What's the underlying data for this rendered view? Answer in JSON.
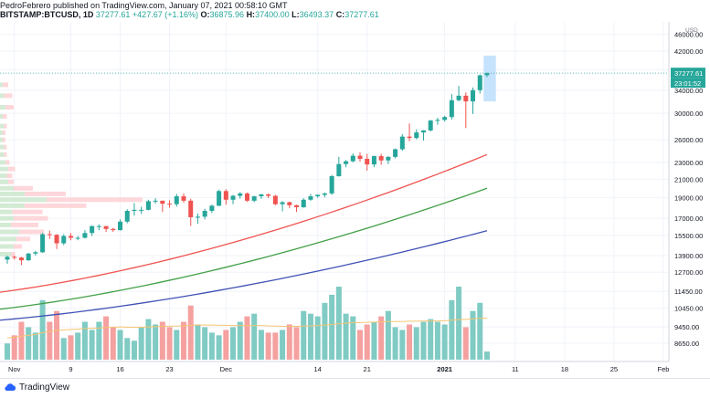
{
  "header": {
    "publish_line": "PedroFebrero published on TradingView.com, January 07, 2021 00:58:10 GMT",
    "symbol": "BITSTAMP:BTCUSD, 1D",
    "last": "37277.61",
    "change": "+427.67 (+1.16%)",
    "o_label": "O:",
    "o_value": "36875.96",
    "h_label": "H:",
    "h_value": "37400.00",
    "l_label": "L:",
    "l_value": "36493.37",
    "c_label": "C:",
    "c_value": "37277.61"
  },
  "footer": {
    "logo_text": "TradingView"
  },
  "colors": {
    "up": "#26a69a",
    "down": "#ef5350",
    "vol_up": "#80cbc4",
    "vol_down": "#f4a1a0",
    "ma_red": "#ef5350",
    "ma_green": "#43a047",
    "ma_blue": "#3f51b5",
    "vol_ma": "#f5c572",
    "projection": "#bbdefb"
  },
  "chart_data": {
    "type": "candlestick",
    "scale": "log",
    "currency": "USD",
    "price_axis_ticks": [
      8650,
      9450,
      10450,
      11450,
      12700,
      13900,
      15500,
      17000,
      19000,
      21000,
      23000,
      26000,
      30000,
      34000,
      38000,
      42000,
      46000
    ],
    "time_axis_labels": [
      {
        "label": "Nov",
        "date": "2020-11-01"
      },
      {
        "label": "9",
        "date": "2020-11-09"
      },
      {
        "label": "16",
        "date": "2020-11-16"
      },
      {
        "label": "23",
        "date": "2020-11-23"
      },
      {
        "label": "Dec",
        "date": "2020-12-01"
      },
      {
        "label": "14",
        "date": "2020-12-14"
      },
      {
        "label": "21",
        "date": "2020-12-21"
      },
      {
        "label": "2021",
        "date": "2021-01-01"
      },
      {
        "label": "11",
        "date": "2021-01-11"
      },
      {
        "label": "18",
        "date": "2021-01-18"
      },
      {
        "label": "25",
        "date": "2021-01-25"
      },
      {
        "label": "Feb",
        "date": "2021-02-01"
      }
    ],
    "last_price_label": "37277.61",
    "countdown_label": "23:01:52",
    "axis_currency_label": "USD",
    "candles": [
      {
        "date": "2020-10-31",
        "o": 13600,
        "h": 13900,
        "l": 13300,
        "c": 13800
      },
      {
        "date": "2020-11-01",
        "o": 13800,
        "h": 13900,
        "l": 13600,
        "c": 13750
      },
      {
        "date": "2020-11-02",
        "o": 13750,
        "h": 13800,
        "l": 13200,
        "c": 13550
      },
      {
        "date": "2020-11-03",
        "o": 13550,
        "h": 14100,
        "l": 13500,
        "c": 14050
      },
      {
        "date": "2020-11-04",
        "o": 14050,
        "h": 14250,
        "l": 13900,
        "c": 14150
      },
      {
        "date": "2020-11-05",
        "o": 14150,
        "h": 15700,
        "l": 14100,
        "c": 15600
      },
      {
        "date": "2020-11-06",
        "o": 15600,
        "h": 15900,
        "l": 15200,
        "c": 15550
      },
      {
        "date": "2020-11-07",
        "o": 15550,
        "h": 15600,
        "l": 14400,
        "c": 14850
      },
      {
        "date": "2020-11-08",
        "o": 14850,
        "h": 15600,
        "l": 14700,
        "c": 15450
      },
      {
        "date": "2020-11-09",
        "o": 15450,
        "h": 15700,
        "l": 15100,
        "c": 15300
      },
      {
        "date": "2020-11-10",
        "o": 15300,
        "h": 15450,
        "l": 15100,
        "c": 15300
      },
      {
        "date": "2020-11-11",
        "o": 15300,
        "h": 15950,
        "l": 15250,
        "c": 15700
      },
      {
        "date": "2020-11-12",
        "o": 15700,
        "h": 16350,
        "l": 15450,
        "c": 16300
      },
      {
        "date": "2020-11-13",
        "o": 16300,
        "h": 16450,
        "l": 15950,
        "c": 16300
      },
      {
        "date": "2020-11-14",
        "o": 16300,
        "h": 16300,
        "l": 15800,
        "c": 16050
      },
      {
        "date": "2020-11-15",
        "o": 16050,
        "h": 16150,
        "l": 15800,
        "c": 15950
      },
      {
        "date": "2020-11-16",
        "o": 15950,
        "h": 16900,
        "l": 15900,
        "c": 16700
      },
      {
        "date": "2020-11-17",
        "o": 16700,
        "h": 17850,
        "l": 16550,
        "c": 17700
      },
      {
        "date": "2020-11-18",
        "o": 17700,
        "h": 18450,
        "l": 17250,
        "c": 17800
      },
      {
        "date": "2020-11-19",
        "o": 17800,
        "h": 18100,
        "l": 17400,
        "c": 17800
      },
      {
        "date": "2020-11-20",
        "o": 17800,
        "h": 18800,
        "l": 17750,
        "c": 18650
      },
      {
        "date": "2020-11-21",
        "o": 18650,
        "h": 18950,
        "l": 18400,
        "c": 18700
      },
      {
        "date": "2020-11-22",
        "o": 18700,
        "h": 18700,
        "l": 17600,
        "c": 18400
      },
      {
        "date": "2020-11-23",
        "o": 18400,
        "h": 18750,
        "l": 18000,
        "c": 18350
      },
      {
        "date": "2020-11-24",
        "o": 18350,
        "h": 19400,
        "l": 18100,
        "c": 19150
      },
      {
        "date": "2020-11-25",
        "o": 19150,
        "h": 19450,
        "l": 18500,
        "c": 18700
      },
      {
        "date": "2020-11-26",
        "o": 18700,
        "h": 18900,
        "l": 16300,
        "c": 17100
      },
      {
        "date": "2020-11-27",
        "o": 17100,
        "h": 17450,
        "l": 16500,
        "c": 17150
      },
      {
        "date": "2020-11-28",
        "o": 17150,
        "h": 17900,
        "l": 16900,
        "c": 17700
      },
      {
        "date": "2020-11-29",
        "o": 17700,
        "h": 18300,
        "l": 17500,
        "c": 18200
      },
      {
        "date": "2020-11-30",
        "o": 18200,
        "h": 19850,
        "l": 18150,
        "c": 19700
      },
      {
        "date": "2020-12-01",
        "o": 19700,
        "h": 19900,
        "l": 18300,
        "c": 18800
      },
      {
        "date": "2020-12-02",
        "o": 18800,
        "h": 19300,
        "l": 18350,
        "c": 19200
      },
      {
        "date": "2020-12-03",
        "o": 19200,
        "h": 19600,
        "l": 18900,
        "c": 19450
      },
      {
        "date": "2020-12-04",
        "o": 19450,
        "h": 19550,
        "l": 18600,
        "c": 18700
      },
      {
        "date": "2020-12-05",
        "o": 18700,
        "h": 19200,
        "l": 18550,
        "c": 19150
      },
      {
        "date": "2020-12-06",
        "o": 19150,
        "h": 19400,
        "l": 18900,
        "c": 19350
      },
      {
        "date": "2020-12-07",
        "o": 19350,
        "h": 19450,
        "l": 18950,
        "c": 19200
      },
      {
        "date": "2020-12-08",
        "o": 19200,
        "h": 19300,
        "l": 18250,
        "c": 18350
      },
      {
        "date": "2020-12-09",
        "o": 18350,
        "h": 18650,
        "l": 17650,
        "c": 18550
      },
      {
        "date": "2020-12-10",
        "o": 18550,
        "h": 18600,
        "l": 17950,
        "c": 18250
      },
      {
        "date": "2020-12-11",
        "o": 18250,
        "h": 18300,
        "l": 17600,
        "c": 18050
      },
      {
        "date": "2020-12-12",
        "o": 18050,
        "h": 18950,
        "l": 18000,
        "c": 18800
      },
      {
        "date": "2020-12-13",
        "o": 18800,
        "h": 19400,
        "l": 18700,
        "c": 19150
      },
      {
        "date": "2020-12-14",
        "o": 19150,
        "h": 19350,
        "l": 19000,
        "c": 19300
      },
      {
        "date": "2020-12-15",
        "o": 19300,
        "h": 19550,
        "l": 19050,
        "c": 19450
      },
      {
        "date": "2020-12-16",
        "o": 19450,
        "h": 21500,
        "l": 19300,
        "c": 21350
      },
      {
        "date": "2020-12-17",
        "o": 21350,
        "h": 23700,
        "l": 21300,
        "c": 22800
      },
      {
        "date": "2020-12-18",
        "o": 22800,
        "h": 23300,
        "l": 22400,
        "c": 23150
      },
      {
        "date": "2020-12-19",
        "o": 23150,
        "h": 24150,
        "l": 23000,
        "c": 23850
      },
      {
        "date": "2020-12-20",
        "o": 23850,
        "h": 24300,
        "l": 23100,
        "c": 23450
      },
      {
        "date": "2020-12-21",
        "o": 23450,
        "h": 24100,
        "l": 22000,
        "c": 22750
      },
      {
        "date": "2020-12-22",
        "o": 22750,
        "h": 23850,
        "l": 22400,
        "c": 23800
      },
      {
        "date": "2020-12-23",
        "o": 23800,
        "h": 24100,
        "l": 22700,
        "c": 23250
      },
      {
        "date": "2020-12-24",
        "o": 23250,
        "h": 23800,
        "l": 22800,
        "c": 23700
      },
      {
        "date": "2020-12-25",
        "o": 23700,
        "h": 24800,
        "l": 23500,
        "c": 24700
      },
      {
        "date": "2020-12-26",
        "o": 24700,
        "h": 26800,
        "l": 24500,
        "c": 26450
      },
      {
        "date": "2020-12-27",
        "o": 26450,
        "h": 28400,
        "l": 25800,
        "c": 26250
      },
      {
        "date": "2020-12-28",
        "o": 26250,
        "h": 27500,
        "l": 26050,
        "c": 27050
      },
      {
        "date": "2020-12-29",
        "o": 27050,
        "h": 27400,
        "l": 25900,
        "c": 27350
      },
      {
        "date": "2020-12-30",
        "o": 27350,
        "h": 28950,
        "l": 27200,
        "c": 28850
      },
      {
        "date": "2020-12-31",
        "o": 28850,
        "h": 29300,
        "l": 28200,
        "c": 28950
      },
      {
        "date": "2021-01-01",
        "o": 28950,
        "h": 29600,
        "l": 28700,
        "c": 29400
      },
      {
        "date": "2021-01-02",
        "o": 29400,
        "h": 33300,
        "l": 29000,
        "c": 32200
      },
      {
        "date": "2021-01-03",
        "o": 32200,
        "h": 34800,
        "l": 32000,
        "c": 33000
      },
      {
        "date": "2021-01-04",
        "o": 33000,
        "h": 33600,
        "l": 27700,
        "c": 32000
      },
      {
        "date": "2021-01-05",
        "o": 32000,
        "h": 34500,
        "l": 29900,
        "c": 34000
      },
      {
        "date": "2021-01-06",
        "o": 34000,
        "h": 37000,
        "l": 33400,
        "c": 36850
      },
      {
        "date": "2021-01-07",
        "o": 36875.96,
        "h": 37400,
        "l": 36493.37,
        "c": 37277.61
      }
    ],
    "volume": [
      6,
      9,
      14,
      12,
      10,
      22,
      14,
      18,
      8,
      9,
      10,
      14,
      11,
      14,
      16,
      12,
      11,
      8,
      7,
      12,
      15,
      13,
      14,
      12,
      11,
      14,
      20,
      13,
      12,
      10,
      9,
      11,
      12,
      14,
      16,
      17,
      11,
      10,
      10,
      11,
      13,
      12,
      18,
      17,
      16,
      21,
      24,
      27,
      17,
      16,
      11,
      13,
      14,
      16,
      18,
      12,
      11,
      13,
      12,
      14,
      15,
      14,
      13,
      22,
      27,
      12,
      18,
      21,
      3
    ],
    "volume_ma": [
      8,
      8.3,
      8.7,
      9,
      9.3,
      10,
      10.4,
      10.8,
      11,
      11.2,
      11.3,
      11.5,
      11.6,
      11.7,
      11.9,
      12,
      12.1,
      12,
      12,
      12,
      12.1,
      12.2,
      12.3,
      12.4,
      12.4,
      12.5,
      12.7,
      12.8,
      12.8,
      12.8,
      12.7,
      12.7,
      12.6,
      12.6,
      12.6,
      12.6,
      12.6,
      12.5,
      12.4,
      12.3,
      12.3,
      12.3,
      12.4,
      12.5,
      12.6,
      12.8,
      13,
      13.3,
      13.5,
      13.7,
      13.7,
      13.8,
      13.9,
      14,
      14.1,
      14.1,
      14.1,
      14.2,
      14.2,
      14.3,
      14.3,
      14.3,
      14.4,
      14.6,
      14.8,
      14.9,
      15.1,
      15.3,
      15.3
    ],
    "ma_lines": [
      {
        "start": 11400,
        "end": 24000
      },
      {
        "start": 10400,
        "end": 20000
      },
      {
        "start": 9800,
        "end": 15900
      }
    ],
    "projection_box": {
      "from_date": "2021-01-06",
      "to_date": "2021-01-08",
      "low": 32000,
      "high": 41000
    },
    "volume_profile": [
      {
        "price": 14000,
        "up": 8,
        "down": 3
      },
      {
        "price": 14600,
        "up": 10,
        "down": 6
      },
      {
        "price": 15200,
        "up": 12,
        "down": 10
      },
      {
        "price": 15800,
        "up": 14,
        "down": 18
      },
      {
        "price": 16400,
        "up": 8,
        "down": 20
      },
      {
        "price": 17000,
        "up": 10,
        "down": 25
      },
      {
        "price": 17600,
        "up": 9,
        "down": 22
      },
      {
        "price": 18200,
        "up": 18,
        "down": 45
      },
      {
        "price": 18800,
        "up": 34,
        "down": 70
      },
      {
        "price": 19400,
        "up": 18,
        "down": 30
      },
      {
        "price": 20000,
        "up": 10,
        "down": 14
      },
      {
        "price": 20700,
        "up": 6,
        "down": 4
      },
      {
        "price": 21400,
        "up": 5,
        "down": 4
      },
      {
        "price": 22200,
        "up": 6,
        "down": 5
      },
      {
        "price": 23000,
        "up": 4,
        "down": 3
      },
      {
        "price": 24000,
        "up": 3,
        "down": 2
      },
      {
        "price": 25000,
        "up": 3,
        "down": 2
      },
      {
        "price": 26000,
        "up": 2,
        "down": 2
      },
      {
        "price": 27000,
        "up": 2,
        "down": 2
      },
      {
        "price": 28000,
        "up": 3,
        "down": 2
      },
      {
        "price": 29500,
        "up": 2,
        "down": 3
      },
      {
        "price": 31000,
        "up": 4,
        "down": 6
      },
      {
        "price": 33000,
        "up": 3,
        "down": 6
      },
      {
        "price": 35000,
        "up": 2,
        "down": 4
      }
    ]
  }
}
